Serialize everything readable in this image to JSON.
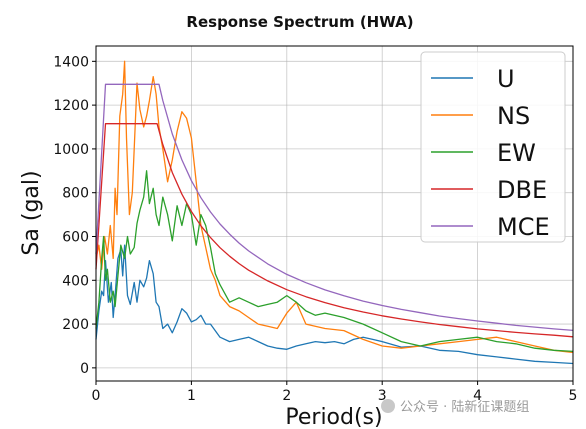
{
  "chart_data": {
    "type": "line",
    "title": "Response Spectrum (HWA)",
    "xlabel": "Period(s)",
    "ylabel": "Sa (gal)",
    "xlim": [
      0,
      5
    ],
    "ylim": [
      -60,
      1470
    ],
    "xticks": [
      0,
      1,
      2,
      3,
      4,
      5
    ],
    "yticks": [
      0,
      200,
      400,
      600,
      800,
      1000,
      1200,
      1400
    ],
    "grid": true,
    "legend_position": "top-right",
    "series": [
      {
        "name": "U",
        "color": "#1f77b4",
        "x": [
          0.0,
          0.03,
          0.06,
          0.08,
          0.1,
          0.13,
          0.16,
          0.18,
          0.2,
          0.23,
          0.26,
          0.28,
          0.3,
          0.33,
          0.36,
          0.4,
          0.43,
          0.46,
          0.5,
          0.53,
          0.56,
          0.6,
          0.63,
          0.66,
          0.7,
          0.75,
          0.8,
          0.85,
          0.9,
          0.95,
          1.0,
          1.05,
          1.1,
          1.15,
          1.2,
          1.3,
          1.4,
          1.5,
          1.6,
          1.7,
          1.8,
          1.9,
          2.0,
          2.1,
          2.2,
          2.3,
          2.4,
          2.5,
          2.6,
          2.7,
          2.8,
          2.9,
          3.0,
          3.2,
          3.4,
          3.6,
          3.8,
          4.0,
          4.2,
          4.4,
          4.6,
          4.8,
          5.0
        ],
        "y": [
          130,
          260,
          350,
          330,
          490,
          300,
          390,
          230,
          330,
          500,
          540,
          420,
          560,
          330,
          290,
          390,
          300,
          400,
          370,
          410,
          490,
          430,
          300,
          280,
          180,
          200,
          160,
          210,
          270,
          250,
          210,
          220,
          240,
          200,
          200,
          140,
          120,
          130,
          140,
          120,
          100,
          90,
          85,
          100,
          110,
          120,
          115,
          120,
          110,
          130,
          140,
          130,
          120,
          95,
          100,
          80,
          75,
          60,
          50,
          40,
          30,
          25,
          20
        ]
      },
      {
        "name": "NS",
        "color": "#ff7f0e",
        "x": [
          0.0,
          0.03,
          0.06,
          0.09,
          0.12,
          0.15,
          0.18,
          0.2,
          0.22,
          0.25,
          0.28,
          0.3,
          0.32,
          0.35,
          0.38,
          0.4,
          0.43,
          0.46,
          0.5,
          0.53,
          0.56,
          0.6,
          0.63,
          0.66,
          0.7,
          0.75,
          0.8,
          0.85,
          0.9,
          0.95,
          1.0,
          1.05,
          1.1,
          1.15,
          1.2,
          1.25,
          1.3,
          1.4,
          1.5,
          1.6,
          1.7,
          1.8,
          1.9,
          2.0,
          2.1,
          2.2,
          2.4,
          2.6,
          2.8,
          3.0,
          3.2,
          3.4,
          3.6,
          3.8,
          4.0,
          4.2,
          4.4,
          4.6,
          4.8,
          5.0
        ],
        "y": [
          500,
          560,
          450,
          600,
          520,
          650,
          500,
          820,
          700,
          1150,
          1250,
          1400,
          1050,
          700,
          800,
          1000,
          1300,
          1180,
          1100,
          1150,
          1220,
          1330,
          1250,
          1100,
          1000,
          850,
          950,
          1080,
          1170,
          1140,
          1050,
          850,
          650,
          550,
          450,
          400,
          330,
          280,
          260,
          230,
          200,
          190,
          180,
          250,
          300,
          200,
          180,
          170,
          130,
          100,
          90,
          100,
          110,
          120,
          130,
          140,
          120,
          100,
          80,
          70
        ]
      },
      {
        "name": "EW",
        "color": "#2ca02c",
        "x": [
          0.0,
          0.03,
          0.06,
          0.08,
          0.1,
          0.12,
          0.15,
          0.18,
          0.2,
          0.23,
          0.26,
          0.3,
          0.33,
          0.36,
          0.4,
          0.43,
          0.46,
          0.5,
          0.53,
          0.56,
          0.6,
          0.63,
          0.66,
          0.7,
          0.75,
          0.8,
          0.85,
          0.9,
          0.95,
          1.0,
          1.05,
          1.1,
          1.15,
          1.2,
          1.25,
          1.3,
          1.4,
          1.5,
          1.6,
          1.7,
          1.8,
          1.9,
          2.0,
          2.1,
          2.2,
          2.3,
          2.4,
          2.6,
          2.8,
          3.0,
          3.2,
          3.4,
          3.6,
          3.8,
          4.0,
          4.2,
          4.4,
          4.6,
          4.8,
          5.0
        ],
        "y": [
          180,
          300,
          500,
          600,
          400,
          450,
          300,
          350,
          280,
          420,
          560,
          500,
          600,
          520,
          550,
          660,
          720,
          780,
          900,
          750,
          820,
          700,
          650,
          780,
          700,
          580,
          740,
          650,
          750,
          700,
          560,
          700,
          650,
          550,
          430,
          380,
          300,
          320,
          300,
          280,
          290,
          300,
          330,
          300,
          260,
          240,
          250,
          230,
          200,
          160,
          120,
          100,
          120,
          130,
          140,
          120,
          110,
          90,
          80,
          75
        ]
      },
      {
        "name": "DBE",
        "color": "#d62728",
        "x": [
          0.0,
          0.1,
          0.64,
          0.7,
          0.8,
          0.9,
          1.0,
          1.1,
          1.2,
          1.3,
          1.4,
          1.5,
          1.6,
          1.8,
          2.0,
          2.2,
          2.4,
          2.6,
          2.8,
          3.0,
          3.2,
          3.4,
          3.6,
          3.8,
          4.0,
          4.2,
          4.4,
          4.6,
          4.8,
          5.0
        ],
        "y": [
          450,
          1115,
          1115,
          1020,
          892,
          793,
          714,
          649,
          595,
          549,
          510,
          476,
          446,
          397,
          357,
          325,
          298,
          275,
          255,
          238,
          223,
          210,
          198,
          188,
          178,
          170,
          162,
          155,
          149,
          142
        ]
      },
      {
        "name": "MCE",
        "color": "#9467bd",
        "x": [
          0.0,
          0.1,
          0.66,
          0.7,
          0.8,
          0.9,
          1.0,
          1.1,
          1.2,
          1.3,
          1.4,
          1.5,
          1.6,
          1.8,
          2.0,
          2.2,
          2.4,
          2.6,
          2.8,
          3.0,
          3.2,
          3.4,
          3.6,
          3.8,
          4.0,
          4.2,
          4.4,
          4.6,
          4.8,
          5.0
        ],
        "y": [
          520,
          1295,
          1295,
          1221,
          1068,
          950,
          855,
          777,
          712,
          657,
          611,
          570,
          534,
          475,
          427,
          389,
          356,
          329,
          305,
          285,
          267,
          252,
          237,
          225,
          214,
          204,
          194,
          186,
          178,
          171
        ]
      }
    ]
  },
  "watermark": "公众号 · 陆新征课题组"
}
